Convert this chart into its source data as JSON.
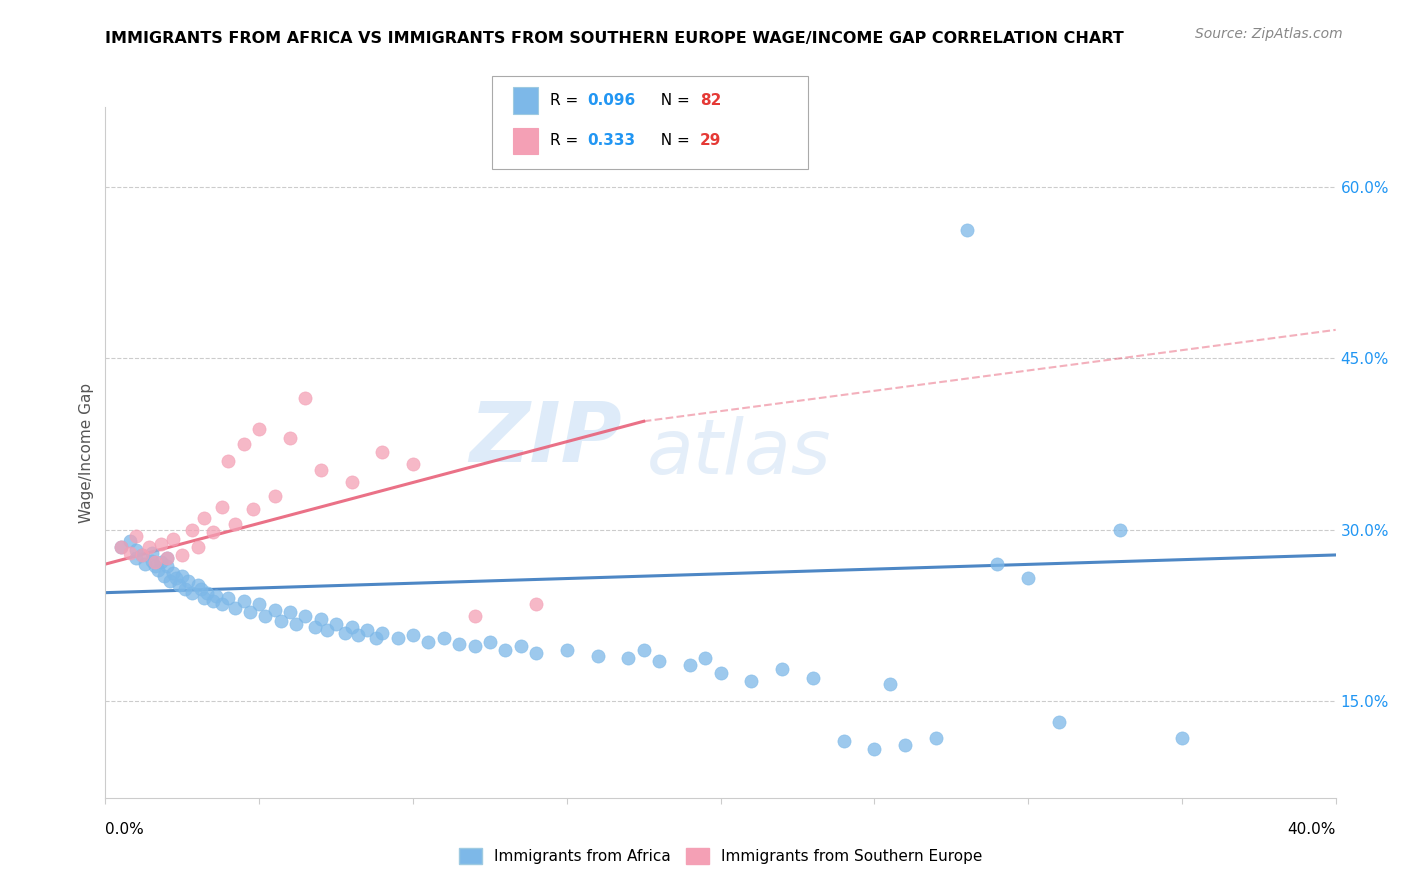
{
  "title": "IMMIGRANTS FROM AFRICA VS IMMIGRANTS FROM SOUTHERN EUROPE WAGE/INCOME GAP CORRELATION CHART",
  "source": "Source: ZipAtlas.com",
  "ylabel": "Wage/Income Gap",
  "yaxis_ticks": [
    0.15,
    0.3,
    0.45,
    0.6
  ],
  "yaxis_labels": [
    "15.0%",
    "30.0%",
    "45.0%",
    "60.0%"
  ],
  "xlim": [
    0.0,
    0.4
  ],
  "ylim": [
    0.065,
    0.67
  ],
  "africa_color": "#7db8e8",
  "southern_europe_color": "#f4a0b5",
  "africa_line_color": "#3a7abf",
  "southern_europe_line_color": "#e8627a",
  "watermark_zip": "ZIP",
  "watermark_atlas": "atlas",
  "africa_points": [
    [
      0.005,
      0.285
    ],
    [
      0.008,
      0.29
    ],
    [
      0.01,
      0.275
    ],
    [
      0.01,
      0.282
    ],
    [
      0.012,
      0.278
    ],
    [
      0.013,
      0.27
    ],
    [
      0.015,
      0.273
    ],
    [
      0.015,
      0.28
    ],
    [
      0.016,
      0.268
    ],
    [
      0.017,
      0.265
    ],
    [
      0.018,
      0.272
    ],
    [
      0.019,
      0.26
    ],
    [
      0.02,
      0.268
    ],
    [
      0.02,
      0.275
    ],
    [
      0.021,
      0.255
    ],
    [
      0.022,
      0.262
    ],
    [
      0.023,
      0.258
    ],
    [
      0.024,
      0.252
    ],
    [
      0.025,
      0.26
    ],
    [
      0.026,
      0.248
    ],
    [
      0.027,
      0.255
    ],
    [
      0.028,
      0.245
    ],
    [
      0.03,
      0.252
    ],
    [
      0.031,
      0.248
    ],
    [
      0.032,
      0.24
    ],
    [
      0.033,
      0.245
    ],
    [
      0.035,
      0.238
    ],
    [
      0.036,
      0.242
    ],
    [
      0.038,
      0.235
    ],
    [
      0.04,
      0.24
    ],
    [
      0.042,
      0.232
    ],
    [
      0.045,
      0.238
    ],
    [
      0.047,
      0.228
    ],
    [
      0.05,
      0.235
    ],
    [
      0.052,
      0.225
    ],
    [
      0.055,
      0.23
    ],
    [
      0.057,
      0.22
    ],
    [
      0.06,
      0.228
    ],
    [
      0.062,
      0.218
    ],
    [
      0.065,
      0.225
    ],
    [
      0.068,
      0.215
    ],
    [
      0.07,
      0.222
    ],
    [
      0.072,
      0.212
    ],
    [
      0.075,
      0.218
    ],
    [
      0.078,
      0.21
    ],
    [
      0.08,
      0.215
    ],
    [
      0.082,
      0.208
    ],
    [
      0.085,
      0.212
    ],
    [
      0.088,
      0.205
    ],
    [
      0.09,
      0.21
    ],
    [
      0.095,
      0.205
    ],
    [
      0.1,
      0.208
    ],
    [
      0.105,
      0.202
    ],
    [
      0.11,
      0.205
    ],
    [
      0.115,
      0.2
    ],
    [
      0.12,
      0.198
    ],
    [
      0.125,
      0.202
    ],
    [
      0.13,
      0.195
    ],
    [
      0.135,
      0.198
    ],
    [
      0.14,
      0.192
    ],
    [
      0.15,
      0.195
    ],
    [
      0.16,
      0.19
    ],
    [
      0.17,
      0.188
    ],
    [
      0.175,
      0.195
    ],
    [
      0.18,
      0.185
    ],
    [
      0.19,
      0.182
    ],
    [
      0.195,
      0.188
    ],
    [
      0.2,
      0.175
    ],
    [
      0.21,
      0.168
    ],
    [
      0.22,
      0.178
    ],
    [
      0.23,
      0.17
    ],
    [
      0.24,
      0.115
    ],
    [
      0.25,
      0.108
    ],
    [
      0.255,
      0.165
    ],
    [
      0.26,
      0.112
    ],
    [
      0.27,
      0.118
    ],
    [
      0.28,
      0.562
    ],
    [
      0.29,
      0.27
    ],
    [
      0.3,
      0.258
    ],
    [
      0.31,
      0.132
    ],
    [
      0.33,
      0.3
    ],
    [
      0.35,
      0.118
    ]
  ],
  "southern_europe_points": [
    [
      0.005,
      0.285
    ],
    [
      0.008,
      0.28
    ],
    [
      0.01,
      0.295
    ],
    [
      0.012,
      0.278
    ],
    [
      0.014,
      0.285
    ],
    [
      0.016,
      0.272
    ],
    [
      0.018,
      0.288
    ],
    [
      0.02,
      0.275
    ],
    [
      0.022,
      0.292
    ],
    [
      0.025,
      0.278
    ],
    [
      0.028,
      0.3
    ],
    [
      0.03,
      0.285
    ],
    [
      0.032,
      0.31
    ],
    [
      0.035,
      0.298
    ],
    [
      0.038,
      0.32
    ],
    [
      0.04,
      0.36
    ],
    [
      0.042,
      0.305
    ],
    [
      0.045,
      0.375
    ],
    [
      0.048,
      0.318
    ],
    [
      0.05,
      0.388
    ],
    [
      0.055,
      0.33
    ],
    [
      0.06,
      0.38
    ],
    [
      0.065,
      0.415
    ],
    [
      0.07,
      0.352
    ],
    [
      0.08,
      0.342
    ],
    [
      0.09,
      0.368
    ],
    [
      0.1,
      0.358
    ],
    [
      0.12,
      0.225
    ],
    [
      0.14,
      0.235
    ]
  ],
  "africa_trend": [
    0.0,
    0.4,
    0.245,
    0.278
  ],
  "se_trend_solid": [
    0.0,
    0.175,
    0.27,
    0.395
  ],
  "se_trend_dashed": [
    0.175,
    0.4,
    0.395,
    0.475
  ]
}
